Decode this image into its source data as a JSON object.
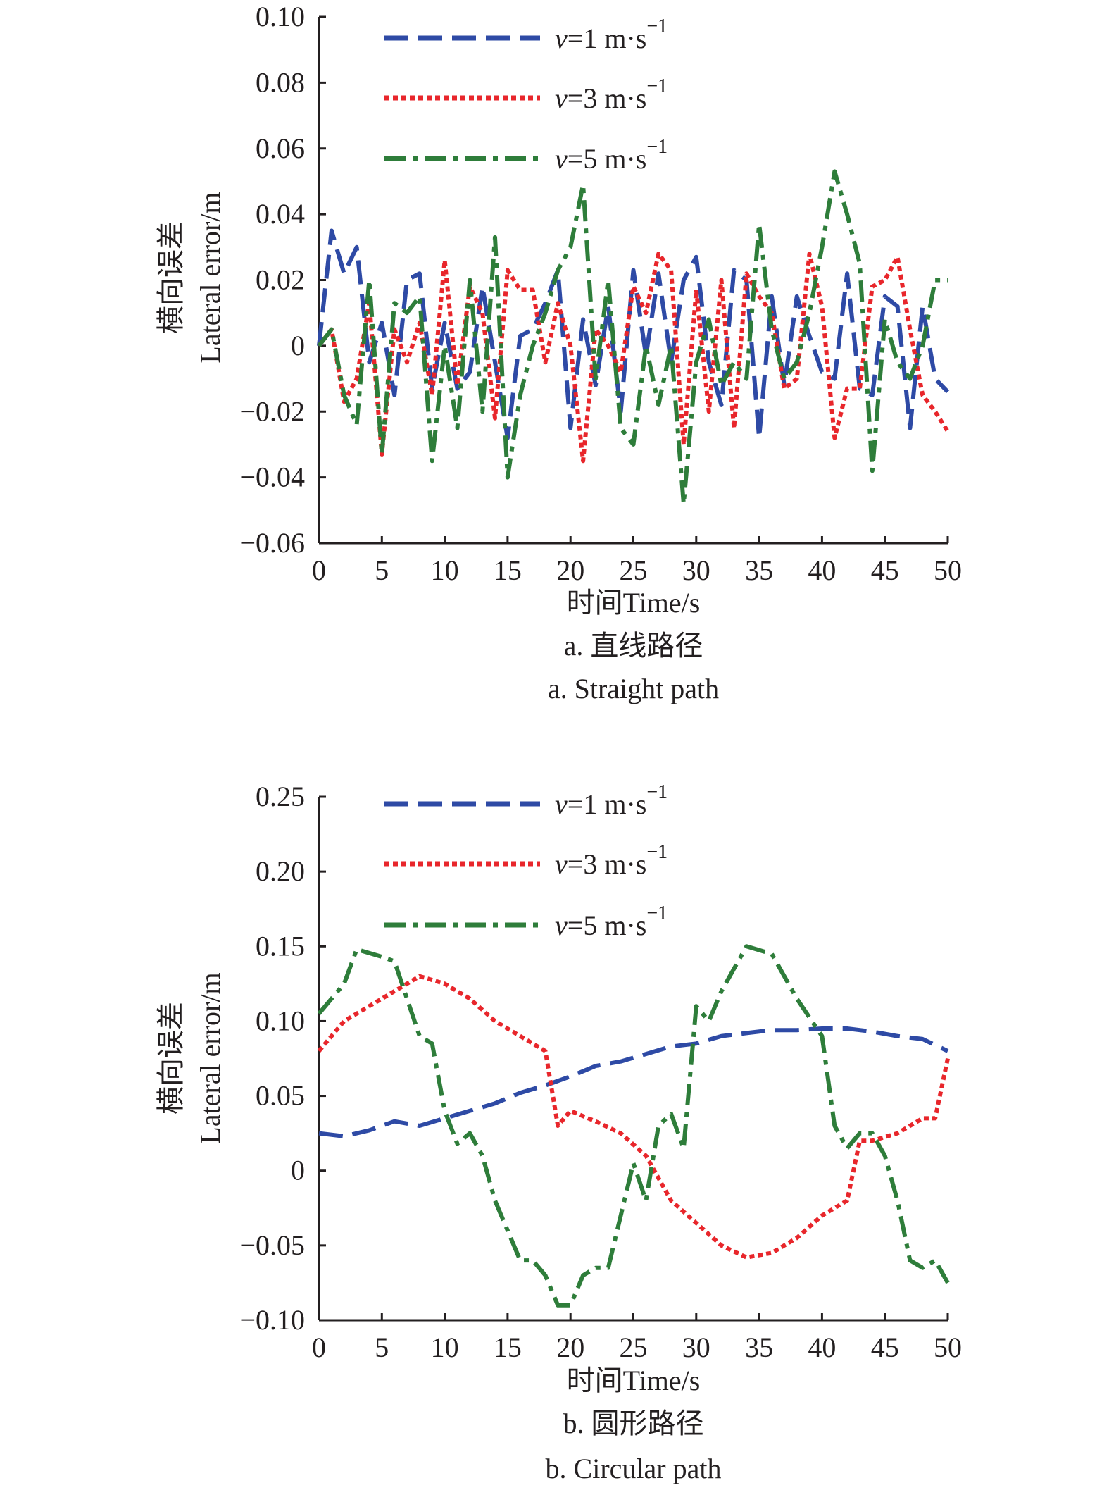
{
  "colors": {
    "v1": "#2e4aa5",
    "v3": "#e8262b",
    "v5": "#2e7d3a",
    "axis": "#231f20"
  },
  "chart_data": [
    {
      "type": "line",
      "title": "a. 直线路径",
      "subtitle": "a. Straight path",
      "xlabel": "时间Time/s",
      "ylabel_cn": "横向误差",
      "ylabel": "Lateral error/m",
      "xlim": [
        0,
        50
      ],
      "ylim": [
        -0.06,
        0.1
      ],
      "xticks": [
        0,
        5,
        10,
        15,
        20,
        25,
        30,
        35,
        40,
        45,
        50
      ],
      "xtick_labels": [
        "0",
        "5",
        "10",
        "15",
        "20",
        "25",
        "30",
        "35",
        "40",
        "45",
        "50"
      ],
      "yticks": [
        -0.06,
        -0.04,
        -0.02,
        0,
        0.02,
        0.04,
        0.06,
        0.08,
        0.1
      ],
      "ytick_labels": [
        "−0.06",
        "−0.04",
        "−0.02",
        "0",
        "0.02",
        "0.04",
        "0.06",
        "0.08",
        "0.10"
      ],
      "legend_position": "top",
      "series": [
        {
          "key": "v1",
          "var": "v",
          "name": "=1 m·s",
          "sup": "−1",
          "style": "dashed",
          "x": [
            0,
            1,
            2,
            3,
            4,
            5,
            6,
            7,
            8,
            9,
            10,
            11,
            12,
            13,
            14,
            15,
            16,
            17,
            18,
            19,
            20,
            21,
            22,
            23,
            24,
            25,
            26,
            27,
            28,
            29,
            30,
            31,
            32,
            33,
            34,
            35,
            36,
            37,
            38,
            39,
            40,
            41,
            42,
            43,
            44,
            45,
            46,
            47,
            48,
            49,
            50
          ],
          "y": [
            0,
            0.035,
            0.022,
            0.03,
            -0.005,
            0.007,
            -0.015,
            0.02,
            0.022,
            -0.013,
            0.007,
            -0.013,
            -0.008,
            0.018,
            -0.005,
            -0.028,
            0.003,
            0.005,
            0.013,
            0.023,
            -0.025,
            0.008,
            -0.012,
            0.012,
            -0.02,
            0.023,
            -0.003,
            0.022,
            -0.005,
            0.02,
            0.027,
            -0.005,
            -0.018,
            0.023,
            0.02,
            -0.028,
            0.015,
            -0.012,
            0.015,
            0.003,
            -0.008,
            -0.01,
            0.022,
            -0.013,
            -0.015,
            0.015,
            0.012,
            -0.025,
            0.012,
            -0.01,
            -0.014
          ]
        },
        {
          "key": "v3",
          "var": "v",
          "name": "=3 m·s",
          "sup": "−1",
          "style": "dotted",
          "x": [
            0,
            1,
            2,
            3,
            4,
            5,
            6,
            7,
            8,
            9,
            10,
            11,
            12,
            13,
            14,
            15,
            16,
            17,
            18,
            19,
            20,
            21,
            22,
            23,
            24,
            25,
            26,
            27,
            28,
            29,
            30,
            31,
            32,
            33,
            34,
            35,
            36,
            37,
            38,
            39,
            40,
            41,
            42,
            43,
            44,
            45,
            46,
            47,
            48,
            49,
            50
          ],
          "y": [
            0,
            0.005,
            -0.017,
            -0.01,
            0.013,
            -0.033,
            0.005,
            -0.005,
            0.007,
            -0.015,
            0.026,
            -0.012,
            0.018,
            0.01,
            -0.022,
            0.023,
            0.017,
            0.017,
            -0.005,
            0.013,
            0,
            -0.035,
            0.005,
            0,
            -0.008,
            0.018,
            0.01,
            0.028,
            0.023,
            -0.03,
            0.017,
            -0.02,
            0.02,
            -0.025,
            0.022,
            0.015,
            0.01,
            -0.013,
            -0.01,
            0.028,
            0.012,
            -0.028,
            -0.013,
            -0.013,
            0.018,
            0.02,
            0.027,
            0.005,
            -0.015,
            -0.02,
            -0.026
          ]
        },
        {
          "key": "v5",
          "var": "v",
          "name": "=5 m·s",
          "sup": "−1",
          "style": "dashdot",
          "x": [
            0,
            1,
            2,
            3,
            4,
            5,
            6,
            7,
            8,
            9,
            10,
            11,
            12,
            13,
            14,
            15,
            16,
            17,
            18,
            19,
            20,
            21,
            22,
            23,
            24,
            25,
            26,
            27,
            28,
            29,
            30,
            31,
            32,
            33,
            34,
            35,
            36,
            37,
            38,
            39,
            40,
            41,
            42,
            43,
            44,
            45,
            46,
            47,
            48,
            49,
            50
          ],
          "y": [
            0,
            0.005,
            -0.015,
            -0.024,
            0.02,
            -0.033,
            0.013,
            0.01,
            0.015,
            -0.035,
            0,
            -0.025,
            0.02,
            -0.02,
            0.033,
            -0.04,
            -0.015,
            0,
            0.01,
            0.023,
            0.03,
            0.049,
            -0.01,
            0.02,
            -0.025,
            -0.03,
            0,
            -0.018,
            0,
            -0.048,
            -0.005,
            0.008,
            -0.012,
            -0.005,
            -0.01,
            0.037,
            0.005,
            -0.01,
            -0.005,
            0.01,
            0.03,
            0.053,
            0.04,
            0.025,
            -0.038,
            0.008,
            -0.005,
            -0.01,
            0,
            0.02,
            0.02
          ]
        }
      ]
    },
    {
      "type": "line",
      "title": "b. 圆形路径",
      "subtitle": "b. Circular path",
      "xlabel": "时间Time/s",
      "ylabel_cn": "横向误差",
      "ylabel": "Lateral error/m",
      "xlim": [
        0,
        50
      ],
      "ylim": [
        -0.1,
        0.25
      ],
      "xticks": [
        0,
        5,
        10,
        15,
        20,
        25,
        30,
        35,
        40,
        45,
        50
      ],
      "xtick_labels": [
        "0",
        "5",
        "10",
        "15",
        "20",
        "25",
        "30",
        "35",
        "40",
        "45",
        "50"
      ],
      "yticks": [
        -0.1,
        -0.05,
        0,
        0.05,
        0.1,
        0.15,
        0.2,
        0.25
      ],
      "ytick_labels": [
        "−0.10",
        "−0.05",
        "0",
        "0.05",
        "0.10",
        "0.15",
        "0.20",
        "0.25"
      ],
      "legend_position": "top",
      "series": [
        {
          "key": "v1",
          "var": "v",
          "name": "=1 m·s",
          "sup": "−1",
          "style": "dashed",
          "x": [
            0,
            2,
            4,
            6,
            8,
            10,
            12,
            14,
            16,
            18,
            20,
            22,
            24,
            26,
            28,
            30,
            32,
            34,
            36,
            38,
            40,
            42,
            44,
            46,
            48,
            50
          ],
          "y": [
            0.025,
            0.023,
            0.027,
            0.033,
            0.03,
            0.035,
            0.04,
            0.045,
            0.052,
            0.057,
            0.063,
            0.07,
            0.073,
            0.078,
            0.083,
            0.085,
            0.09,
            0.092,
            0.094,
            0.094,
            0.095,
            0.095,
            0.093,
            0.09,
            0.088,
            0.08
          ]
        },
        {
          "key": "v3",
          "var": "v",
          "name": "=3 m·s",
          "sup": "−1",
          "style": "dotted",
          "x": [
            0,
            2,
            4,
            6,
            8,
            10,
            12,
            14,
            16,
            18,
            19,
            20,
            22,
            24,
            26,
            28,
            30,
            32,
            34,
            36,
            38,
            40,
            42,
            43,
            44,
            46,
            48,
            49,
            50
          ],
          "y": [
            0.08,
            0.1,
            0.11,
            0.12,
            0.13,
            0.125,
            0.115,
            0.1,
            0.09,
            0.08,
            0.03,
            0.04,
            0.033,
            0.025,
            0.01,
            -0.02,
            -0.035,
            -0.05,
            -0.058,
            -0.055,
            -0.045,
            -0.03,
            -0.02,
            0.02,
            0.02,
            0.025,
            0.035,
            0.035,
            0.075
          ]
        },
        {
          "key": "v5",
          "var": "v",
          "name": "=5 m·s",
          "sup": "−1",
          "style": "dashdot",
          "x": [
            0,
            2,
            3,
            5,
            6,
            7,
            8,
            9,
            10,
            11,
            12,
            13,
            14,
            15,
            16,
            17,
            18,
            19,
            20,
            21,
            22,
            23,
            24,
            25,
            26,
            27,
            28,
            29,
            30,
            31,
            32,
            34,
            36,
            38,
            40,
            41,
            42,
            43,
            44,
            45,
            46,
            47,
            48,
            49,
            50
          ],
          "y": [
            0.105,
            0.125,
            0.148,
            0.143,
            0.14,
            0.115,
            0.09,
            0.085,
            0.04,
            0.018,
            0.025,
            0.01,
            -0.02,
            -0.04,
            -0.06,
            -0.06,
            -0.07,
            -0.09,
            -0.09,
            -0.07,
            -0.065,
            -0.065,
            -0.03,
            0.005,
            -0.02,
            0.03,
            0.038,
            0.015,
            0.11,
            0.1,
            0.12,
            0.15,
            0.145,
            0.115,
            0.09,
            0.03,
            0.015,
            0.025,
            0.025,
            0.01,
            -0.02,
            -0.06,
            -0.065,
            -0.06,
            -0.075
          ]
        }
      ]
    }
  ]
}
